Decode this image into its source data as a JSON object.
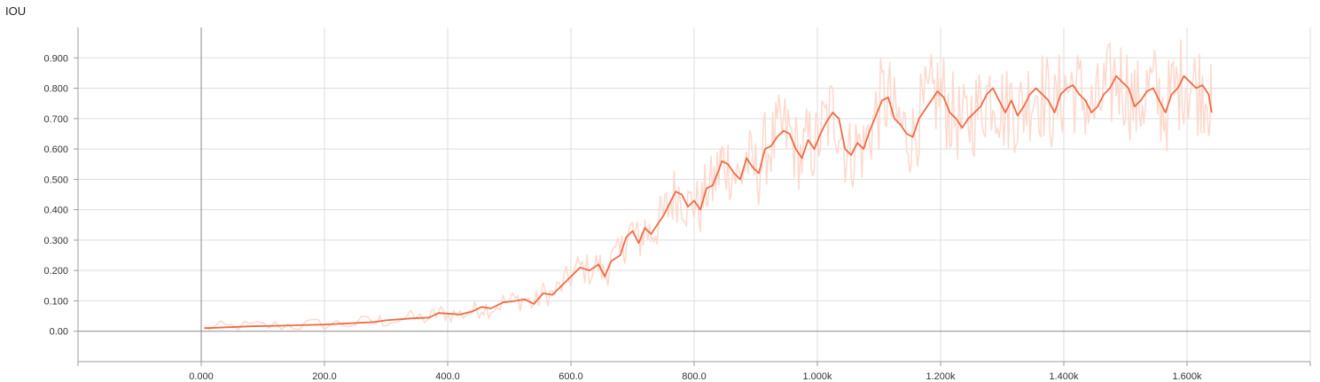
{
  "chart_data": {
    "type": "line",
    "title": "IOU",
    "xlabel": "",
    "ylabel": "",
    "xlim": [
      -200,
      1800
    ],
    "ylim": [
      -0.1,
      1.0
    ],
    "grid": true,
    "legend": "none",
    "x_ticks": [
      {
        "value": 0,
        "label": "0.000"
      },
      {
        "value": 200,
        "label": "200.0"
      },
      {
        "value": 400,
        "label": "400.0"
      },
      {
        "value": 600,
        "label": "600.0"
      },
      {
        "value": 800,
        "label": "800.0"
      },
      {
        "value": 1000,
        "label": "1.000k"
      },
      {
        "value": 1200,
        "label": "1.200k"
      },
      {
        "value": 1400,
        "label": "1.400k"
      },
      {
        "value": 1600,
        "label": "1.600k"
      }
    ],
    "y_ticks": [
      {
        "value": 0.0,
        "label": "0.00"
      },
      {
        "value": 0.1,
        "label": "0.100"
      },
      {
        "value": 0.2,
        "label": "0.200"
      },
      {
        "value": 0.3,
        "label": "0.300"
      },
      {
        "value": 0.4,
        "label": "0.400"
      },
      {
        "value": 0.5,
        "label": "0.500"
      },
      {
        "value": 0.6,
        "label": "0.600"
      },
      {
        "value": 0.7,
        "label": "0.700"
      },
      {
        "value": 0.8,
        "label": "0.800"
      },
      {
        "value": 0.9,
        "label": "0.900"
      }
    ],
    "series": [
      {
        "color": "#f06a43",
        "raw_color": "#fcd9cd",
        "points": [
          [
            5,
            0.01
          ],
          [
            40,
            0.013
          ],
          [
            80,
            0.016
          ],
          [
            120,
            0.018
          ],
          [
            160,
            0.02
          ],
          [
            200,
            0.022
          ],
          [
            240,
            0.026
          ],
          [
            280,
            0.03
          ],
          [
            300,
            0.036
          ],
          [
            340,
            0.042
          ],
          [
            370,
            0.045
          ],
          [
            385,
            0.06
          ],
          [
            400,
            0.058
          ],
          [
            420,
            0.055
          ],
          [
            440,
            0.065
          ],
          [
            455,
            0.08
          ],
          [
            470,
            0.075
          ],
          [
            490,
            0.095
          ],
          [
            510,
            0.1
          ],
          [
            525,
            0.105
          ],
          [
            540,
            0.09
          ],
          [
            555,
            0.125
          ],
          [
            570,
            0.12
          ],
          [
            585,
            0.15
          ],
          [
            600,
            0.18
          ],
          [
            615,
            0.21
          ],
          [
            630,
            0.2
          ],
          [
            645,
            0.22
          ],
          [
            655,
            0.18
          ],
          [
            665,
            0.23
          ],
          [
            680,
            0.25
          ],
          [
            690,
            0.31
          ],
          [
            700,
            0.33
          ],
          [
            710,
            0.29
          ],
          [
            720,
            0.34
          ],
          [
            730,
            0.32
          ],
          [
            740,
            0.35
          ],
          [
            750,
            0.38
          ],
          [
            760,
            0.42
          ],
          [
            770,
            0.46
          ],
          [
            780,
            0.45
          ],
          [
            790,
            0.41
          ],
          [
            800,
            0.43
          ],
          [
            810,
            0.4
          ],
          [
            820,
            0.47
          ],
          [
            830,
            0.48
          ],
          [
            840,
            0.53
          ],
          [
            845,
            0.56
          ],
          [
            855,
            0.55
          ],
          [
            865,
            0.52
          ],
          [
            875,
            0.5
          ],
          [
            885,
            0.57
          ],
          [
            895,
            0.54
          ],
          [
            905,
            0.52
          ],
          [
            915,
            0.6
          ],
          [
            925,
            0.61
          ],
          [
            935,
            0.64
          ],
          [
            945,
            0.66
          ],
          [
            955,
            0.65
          ],
          [
            965,
            0.6
          ],
          [
            975,
            0.57
          ],
          [
            985,
            0.63
          ],
          [
            995,
            0.6
          ],
          [
            1005,
            0.65
          ],
          [
            1015,
            0.69
          ],
          [
            1025,
            0.72
          ],
          [
            1035,
            0.7
          ],
          [
            1045,
            0.6
          ],
          [
            1055,
            0.58
          ],
          [
            1065,
            0.62
          ],
          [
            1075,
            0.6
          ],
          [
            1085,
            0.66
          ],
          [
            1095,
            0.71
          ],
          [
            1105,
            0.76
          ],
          [
            1115,
            0.77
          ],
          [
            1125,
            0.7
          ],
          [
            1135,
            0.68
          ],
          [
            1145,
            0.65
          ],
          [
            1155,
            0.64
          ],
          [
            1165,
            0.7
          ],
          [
            1175,
            0.73
          ],
          [
            1185,
            0.76
          ],
          [
            1195,
            0.79
          ],
          [
            1205,
            0.77
          ],
          [
            1215,
            0.72
          ],
          [
            1225,
            0.7
          ],
          [
            1235,
            0.67
          ],
          [
            1245,
            0.7
          ],
          [
            1255,
            0.72
          ],
          [
            1265,
            0.74
          ],
          [
            1275,
            0.78
          ],
          [
            1285,
            0.8
          ],
          [
            1295,
            0.76
          ],
          [
            1305,
            0.72
          ],
          [
            1315,
            0.76
          ],
          [
            1325,
            0.71
          ],
          [
            1335,
            0.74
          ],
          [
            1345,
            0.78
          ],
          [
            1355,
            0.8
          ],
          [
            1365,
            0.78
          ],
          [
            1375,
            0.76
          ],
          [
            1385,
            0.72
          ],
          [
            1395,
            0.78
          ],
          [
            1405,
            0.8
          ],
          [
            1415,
            0.81
          ],
          [
            1425,
            0.78
          ],
          [
            1435,
            0.76
          ],
          [
            1445,
            0.72
          ],
          [
            1455,
            0.74
          ],
          [
            1465,
            0.78
          ],
          [
            1475,
            0.8
          ],
          [
            1485,
            0.84
          ],
          [
            1495,
            0.82
          ],
          [
            1505,
            0.8
          ],
          [
            1515,
            0.74
          ],
          [
            1525,
            0.76
          ],
          [
            1535,
            0.79
          ],
          [
            1545,
            0.8
          ],
          [
            1555,
            0.76
          ],
          [
            1565,
            0.72
          ],
          [
            1575,
            0.78
          ],
          [
            1585,
            0.8
          ],
          [
            1595,
            0.84
          ],
          [
            1605,
            0.82
          ],
          [
            1615,
            0.8
          ],
          [
            1625,
            0.81
          ],
          [
            1635,
            0.78
          ],
          [
            1640,
            0.72
          ]
        ]
      }
    ]
  }
}
